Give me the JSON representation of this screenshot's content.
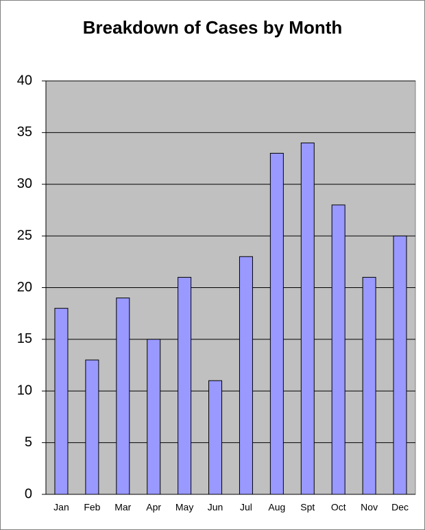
{
  "chart_data": {
    "type": "bar",
    "title": "Breakdown of Cases by Month",
    "categories": [
      "Jan",
      "Feb",
      "Mar",
      "Apr",
      "May",
      "Jun",
      "Jul",
      "Aug",
      "Spt",
      "Oct",
      "Nov",
      "Dec"
    ],
    "values": [
      18,
      13,
      19,
      15,
      21,
      11,
      23,
      33,
      34,
      28,
      21,
      25
    ],
    "color": "#9999ff",
    "ylim": [
      0,
      40
    ],
    "yticks": [
      0,
      5,
      10,
      15,
      20,
      25,
      30,
      35,
      40
    ],
    "grid": true
  }
}
